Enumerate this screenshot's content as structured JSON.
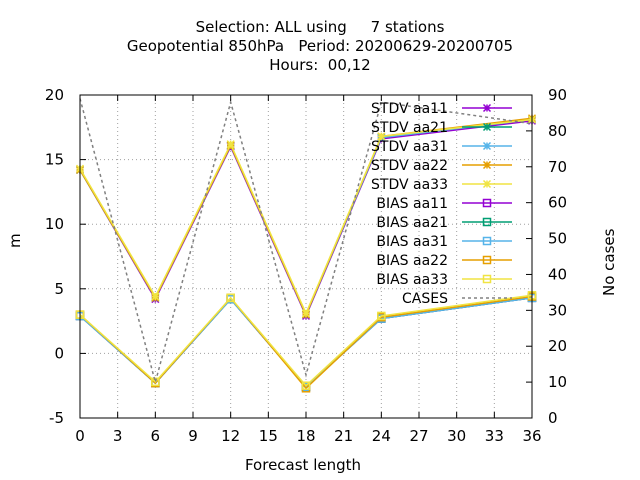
{
  "chart_data": {
    "type": "line",
    "title_lines": [
      "Selection: ALL using     7 stations",
      "Geopotential 850hPa   Period: 20200629-20200705",
      "Hours:  00,12"
    ],
    "xlabel": "Forecast length",
    "ylabel": "m",
    "y2label": "No cases",
    "x": [
      0,
      6,
      12,
      18,
      24,
      36
    ],
    "xticks": [
      0,
      3,
      6,
      9,
      12,
      15,
      18,
      21,
      24,
      27,
      30,
      33,
      36
    ],
    "xlim": [
      0,
      36
    ],
    "ylim": [
      -5,
      20
    ],
    "yticks": [
      -5,
      0,
      5,
      10,
      15,
      20
    ],
    "y2lim": [
      0,
      90
    ],
    "y2ticks": [
      0,
      10,
      20,
      30,
      40,
      50,
      60,
      70,
      80,
      90
    ],
    "grid": true,
    "legend_position": "top-right",
    "series": [
      {
        "name": "STDV aa11",
        "axis": "y",
        "color": "#9400d3",
        "marker": "star",
        "values": [
          14.2,
          4.2,
          16.0,
          2.9,
          16.6,
          18.0
        ]
      },
      {
        "name": "STDV aa21",
        "axis": "y",
        "color": "#009e73",
        "marker": "star",
        "values": [
          14.2,
          4.3,
          16.1,
          3.0,
          16.7,
          18.1
        ]
      },
      {
        "name": "STDV aa31",
        "axis": "y",
        "color": "#56b4e9",
        "marker": "star",
        "values": [
          14.2,
          4.3,
          16.1,
          3.0,
          16.7,
          18.1
        ]
      },
      {
        "name": "STDV aa22",
        "axis": "y",
        "color": "#e69f00",
        "marker": "star",
        "values": [
          14.2,
          4.3,
          16.1,
          3.0,
          16.8,
          18.2
        ]
      },
      {
        "name": "STDV aa33",
        "axis": "y",
        "color": "#f0e442",
        "marker": "star",
        "values": [
          14.3,
          4.4,
          16.2,
          3.1,
          16.8,
          18.1
        ]
      },
      {
        "name": "BIAS aa11",
        "axis": "y",
        "color": "#9400d3",
        "marker": "square",
        "values": [
          2.9,
          -2.3,
          4.2,
          -2.6,
          2.7,
          4.3
        ]
      },
      {
        "name": "BIAS aa21",
        "axis": "y",
        "color": "#009e73",
        "marker": "square",
        "values": [
          2.9,
          -2.3,
          4.2,
          -2.6,
          2.7,
          4.3
        ]
      },
      {
        "name": "BIAS aa31",
        "axis": "y",
        "color": "#56b4e9",
        "marker": "square",
        "values": [
          2.9,
          -2.3,
          4.2,
          -2.6,
          2.7,
          4.3
        ]
      },
      {
        "name": "BIAS aa22",
        "axis": "y",
        "color": "#e69f00",
        "marker": "square",
        "values": [
          3.0,
          -2.3,
          4.3,
          -2.7,
          2.8,
          4.4
        ]
      },
      {
        "name": "BIAS aa33",
        "axis": "y",
        "color": "#f0e442",
        "marker": "square",
        "values": [
          3.0,
          -2.2,
          4.3,
          -2.5,
          2.9,
          4.5
        ]
      },
      {
        "name": "CASES",
        "axis": "y2",
        "color": "#808080",
        "marker": "none",
        "dashed": true,
        "x": [
          0,
          6,
          12,
          18,
          24,
          36
        ],
        "values": [
          89,
          10,
          88,
          12,
          88,
          82
        ]
      }
    ]
  }
}
